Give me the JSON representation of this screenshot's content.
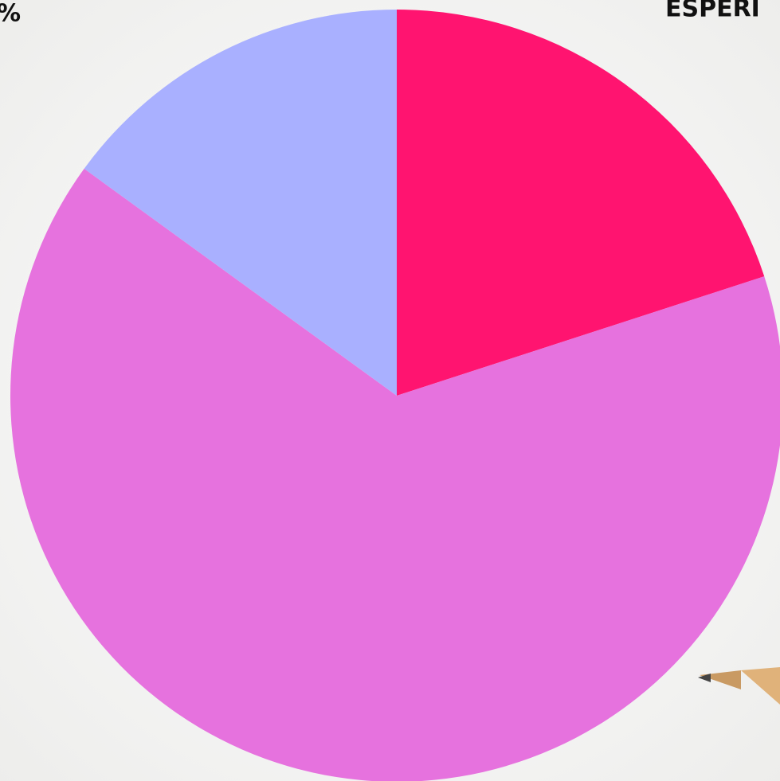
{
  "chart_data": {
    "type": "pie",
    "annotations": [
      "%",
      "ESPERI"
    ],
    "values": [
      20,
      65,
      15
    ],
    "colors": [
      "#ff1470",
      "#e672de",
      "#a9b0ff"
    ]
  }
}
